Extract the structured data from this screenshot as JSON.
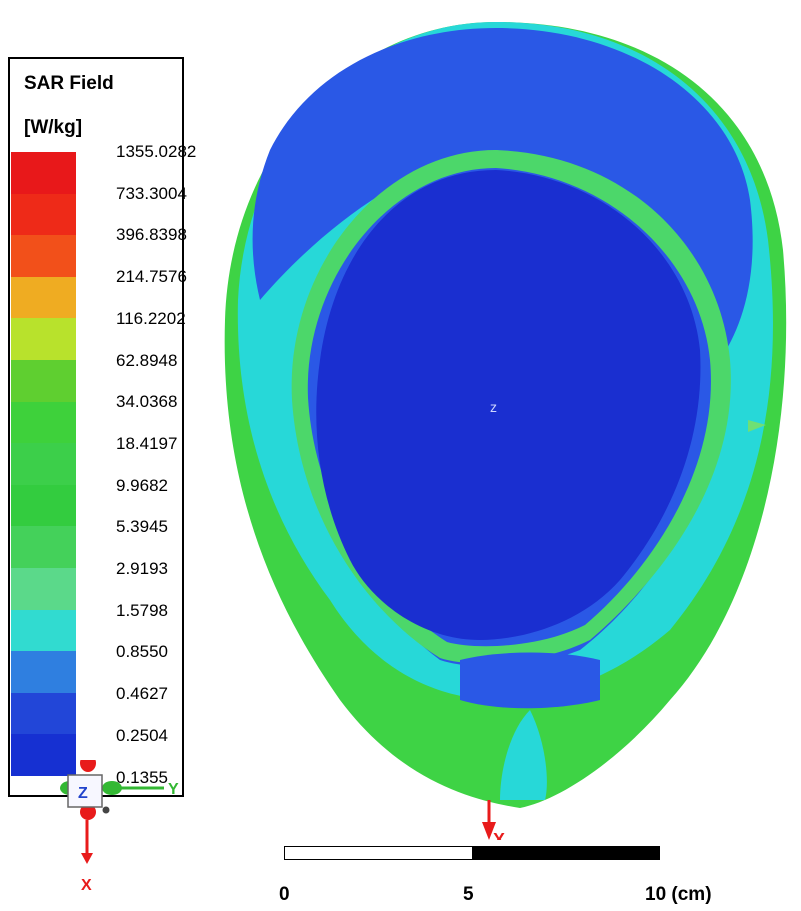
{
  "legend": {
    "title_line1": "SAR Field",
    "title_line2": "[W/kg]",
    "ticks": [
      "1355.0282",
      "733.3004",
      "396.8398",
      "214.7576",
      "116.2202",
      "62.8948",
      "34.0368",
      "18.4197",
      "9.9682",
      "5.3945",
      "2.9193",
      "1.5798",
      "0.8550",
      "0.4627",
      "0.2504",
      "0.1355"
    ],
    "colors": [
      "#e8181a",
      "#ee2a18",
      "#f2501a",
      "#efac22",
      "#b8e22c",
      "#5fcf30",
      "#3ed13b",
      "#3ccf4a",
      "#33cc3f",
      "#44d15a",
      "#5bd98a",
      "#31dbd0",
      "#2f7fe0",
      "#2246d8",
      "#1630d2"
    ]
  },
  "triad": {
    "z_label": "Z",
    "y_label": "Y",
    "x_label": "X"
  },
  "scene_axis": {
    "x_label": "X"
  },
  "scale": {
    "label_0": "0",
    "label_5": "5",
    "label_10": "10 (cm)"
  },
  "palette": {
    "deep_blue": "#1a2fd0",
    "blue": "#2a58e6",
    "cyan": "#27d8d8",
    "green": "#3ed345",
    "light_green": "#6fe074",
    "red": "#e81b1b"
  }
}
